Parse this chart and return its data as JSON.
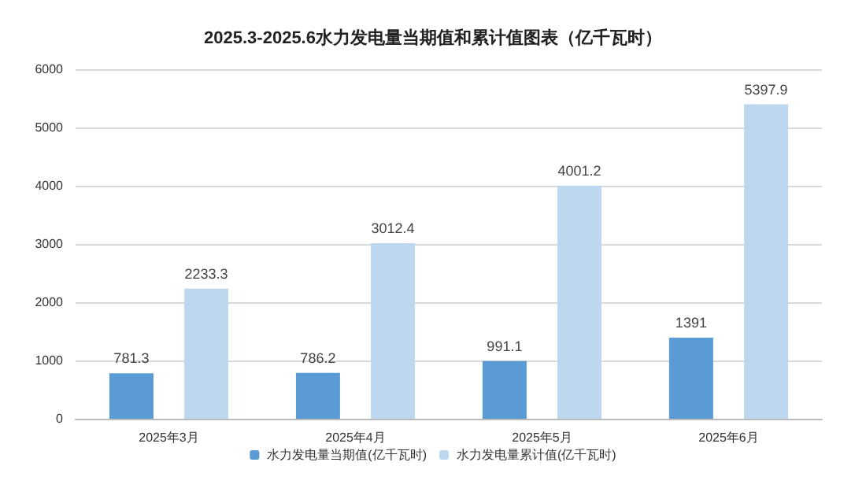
{
  "chart_data": {
    "type": "bar",
    "title": "2025.3-2025.6水力发电量当期值和累计值图表（亿千瓦时）",
    "categories": [
      "2025年3月",
      "2025年4月",
      "2025年5月",
      "2025年6月"
    ],
    "series": [
      {
        "name": "水力发电量当期值(亿千瓦时)",
        "color": "#5b9bd5",
        "values": [
          781.3,
          786.2,
          991.1,
          1391
        ]
      },
      {
        "name": "水力发电量累计值(亿千瓦时)",
        "color": "#bdd7ee",
        "values": [
          2233.3,
          3012.4,
          4001.2,
          5397.9
        ]
      }
    ],
    "ylim": [
      0,
      6000
    ],
    "yticks": [
      0,
      1000,
      2000,
      3000,
      4000,
      5000,
      6000
    ],
    "grid": "y",
    "legend": "bottom",
    "data_labels": true
  }
}
